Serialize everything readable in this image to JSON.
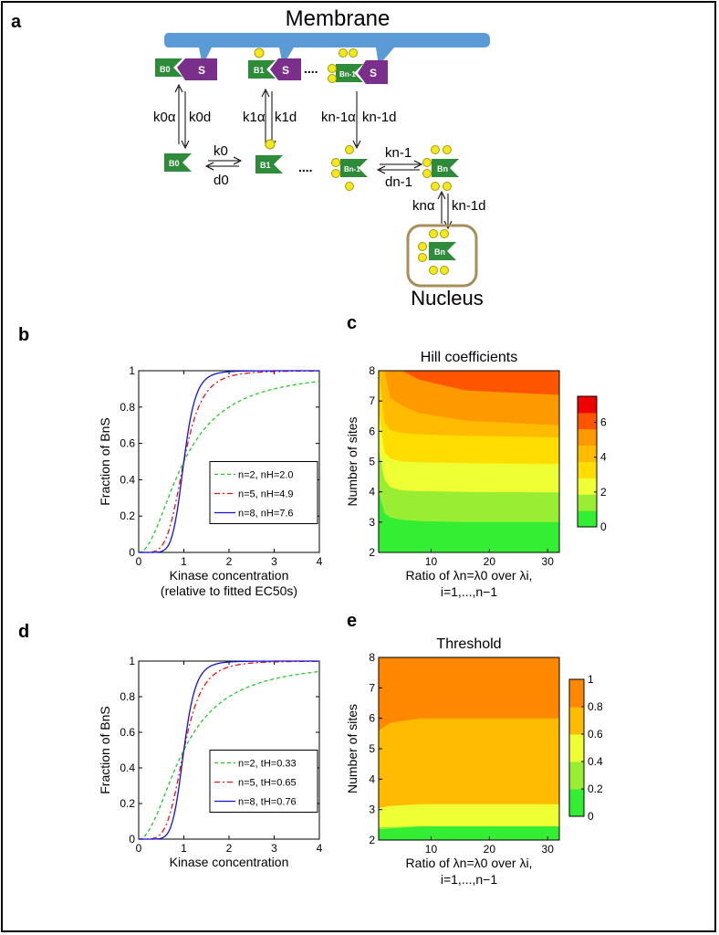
{
  "panel_labels": [
    "a",
    "b",
    "c",
    "d",
    "e"
  ],
  "schematic": {
    "membrane_label": "Membrane",
    "nucleus_label": "Nucleus",
    "scaffold_label": "S",
    "phospho_label": "p",
    "ellipsis": "....",
    "species_top": [
      "B0",
      "B1",
      "Bn-1"
    ],
    "species_mid": [
      "B0",
      "B1",
      "Bn-1",
      "Bn"
    ],
    "species_nucleus": "Bn",
    "rates_vertical": [
      {
        "alpha": "k0α",
        "d": "k0d"
      },
      {
        "alpha": "k1α",
        "d": "k1d"
      },
      {
        "alpha": "kn-1α",
        "d": "kn-1d"
      },
      {
        "alpha": "knα",
        "d": "kn-1d"
      }
    ],
    "rates_horizontal": [
      {
        "fwd": "k0",
        "rev": "d0"
      },
      {
        "fwd": "kn-1",
        "rev": "dn-1"
      }
    ]
  },
  "chart_data": [
    {
      "id": "b",
      "type": "line",
      "title": "",
      "xlabel": "Kinase concentration",
      "xlabel2": "(relative to fitted EC50s)",
      "ylabel": "Fraction of BnS",
      "xlim": [
        0,
        4
      ],
      "ylim": [
        0,
        1
      ],
      "xticks": [
        "0",
        "1",
        "2",
        "3",
        "4"
      ],
      "yticks": [
        "0",
        "0.2",
        "0.4",
        "0.6",
        "0.8",
        "1"
      ],
      "legend_position": "center-right",
      "series": [
        {
          "name": "n=2, nH=2.0",
          "hill": 2.0,
          "color": "#22cc22",
          "dash": "4,3"
        },
        {
          "name": "n=5, nH=4.9",
          "hill": 4.9,
          "color": "#ee1111",
          "dash": "6,3,2,3"
        },
        {
          "name": "n=8, nH=7.6",
          "hill": 7.6,
          "color": "#1111dd",
          "dash": ""
        }
      ]
    },
    {
      "id": "c",
      "type": "heatmap",
      "title": "Hill coefficients",
      "xlabel": "Ratio of λn=λ0 over λi,",
      "xlabel2": "i=1,...,n−1",
      "ylabel": "Number of sites",
      "xlim": [
        1,
        32
      ],
      "ylim": [
        2,
        8
      ],
      "xticks": [
        "10",
        "20",
        "30"
      ],
      "yticks": [
        "2",
        "3",
        "4",
        "5",
        "6",
        "7",
        "8"
      ],
      "colorbar_ticks": [
        "0",
        "2",
        "4",
        "6"
      ],
      "colorbar_max": 7.5,
      "colors": [
        "#33ee33",
        "#99ee33",
        "#eeff33",
        "#ffdd00",
        "#ffbb00",
        "#ff9900",
        "#ff5500",
        "#ee0000"
      ],
      "boundaries": [
        {
          "x": [
            1,
            2,
            3,
            5,
            8,
            16,
            32
          ],
          "y": [
            4.0,
            3.3,
            3.15,
            3.08,
            3.03,
            3.0,
            3.0
          ]
        },
        {
          "x": [
            1,
            2,
            3,
            5,
            8,
            16,
            32
          ],
          "y": [
            5.4,
            4.4,
            4.15,
            4.05,
            4.02,
            4.0,
            3.98
          ]
        },
        {
          "x": [
            1,
            2,
            3,
            5,
            8,
            16,
            32
          ],
          "y": [
            6.7,
            5.3,
            5.1,
            5.0,
            4.98,
            4.95,
            4.92
          ]
        },
        {
          "x": [
            1,
            2,
            3,
            5,
            8,
            16,
            32
          ],
          "y": [
            8.0,
            6.3,
            6.05,
            5.95,
            5.9,
            5.85,
            5.8
          ]
        },
        {
          "x": [
            1,
            2,
            3,
            5,
            8,
            16,
            32
          ],
          "y": [
            8.0,
            8.0,
            7.1,
            6.85,
            6.6,
            6.35,
            6.2
          ]
        },
        {
          "x": [
            1,
            2,
            3,
            5,
            8,
            16,
            32
          ],
          "y": [
            8.0,
            8.0,
            8.0,
            8.0,
            7.7,
            7.35,
            7.2
          ]
        },
        {
          "x": [
            1,
            2,
            3,
            5,
            8,
            16,
            32
          ],
          "y": [
            8.0,
            8.0,
            8.0,
            8.0,
            8.0,
            8.0,
            8.0
          ]
        }
      ]
    },
    {
      "id": "d",
      "type": "line",
      "title": "",
      "xlabel": "Kinase concentration",
      "ylabel": "Fraction of BnS",
      "xlim": [
        0,
        4
      ],
      "ylim": [
        0,
        1
      ],
      "xticks": [
        "0",
        "1",
        "2",
        "3",
        "4"
      ],
      "yticks": [
        "0",
        "0.2",
        "0.4",
        "0.6",
        "0.8",
        "1"
      ],
      "legend_position": "center-right",
      "series": [
        {
          "name": "n=2, tH=0.33",
          "hill": 2.0,
          "color": "#22cc22",
          "dash": "4,3"
        },
        {
          "name": "n=5, tH=0.65",
          "hill": 4.9,
          "color": "#ee1111",
          "dash": "6,3,2,3"
        },
        {
          "name": "n=8, tH=0.76",
          "hill": 7.6,
          "color": "#1111dd",
          "dash": ""
        }
      ]
    },
    {
      "id": "e",
      "type": "heatmap",
      "title": "Threshold",
      "xlabel": "Ratio of λn=λ0 over λi,",
      "xlabel2": "i=1,...,n−1",
      "ylabel": "Number of sites",
      "xlim": [
        1,
        32
      ],
      "ylim": [
        2,
        8
      ],
      "xticks": [
        "10",
        "20",
        "30"
      ],
      "yticks": [
        "2",
        "3",
        "4",
        "5",
        "6",
        "7",
        "8"
      ],
      "colorbar_ticks": [
        "0",
        "0.2",
        "0.4",
        "0.6",
        "0.8",
        "1"
      ],
      "colorbar_max": 1,
      "colors": [
        "#33ee33",
        "#99ee33",
        "#eeff33",
        "#ffbb00",
        "#ff8800"
      ],
      "boundaries": [
        {
          "x": [
            1,
            8,
            32
          ],
          "y": [
            2.35,
            2.45,
            2.45
          ]
        },
        {
          "x": [
            1,
            8,
            32
          ],
          "y": [
            2.42,
            2.45,
            2.45
          ]
        },
        {
          "x": [
            1,
            3,
            8,
            32
          ],
          "y": [
            3.05,
            3.12,
            3.18,
            3.18
          ]
        },
        {
          "x": [
            1,
            3,
            8,
            32
          ],
          "y": [
            5.6,
            5.85,
            6.0,
            6.0
          ]
        },
        {
          "x": [
            1,
            32
          ],
          "y": [
            8.0,
            8.0
          ]
        }
      ]
    }
  ]
}
